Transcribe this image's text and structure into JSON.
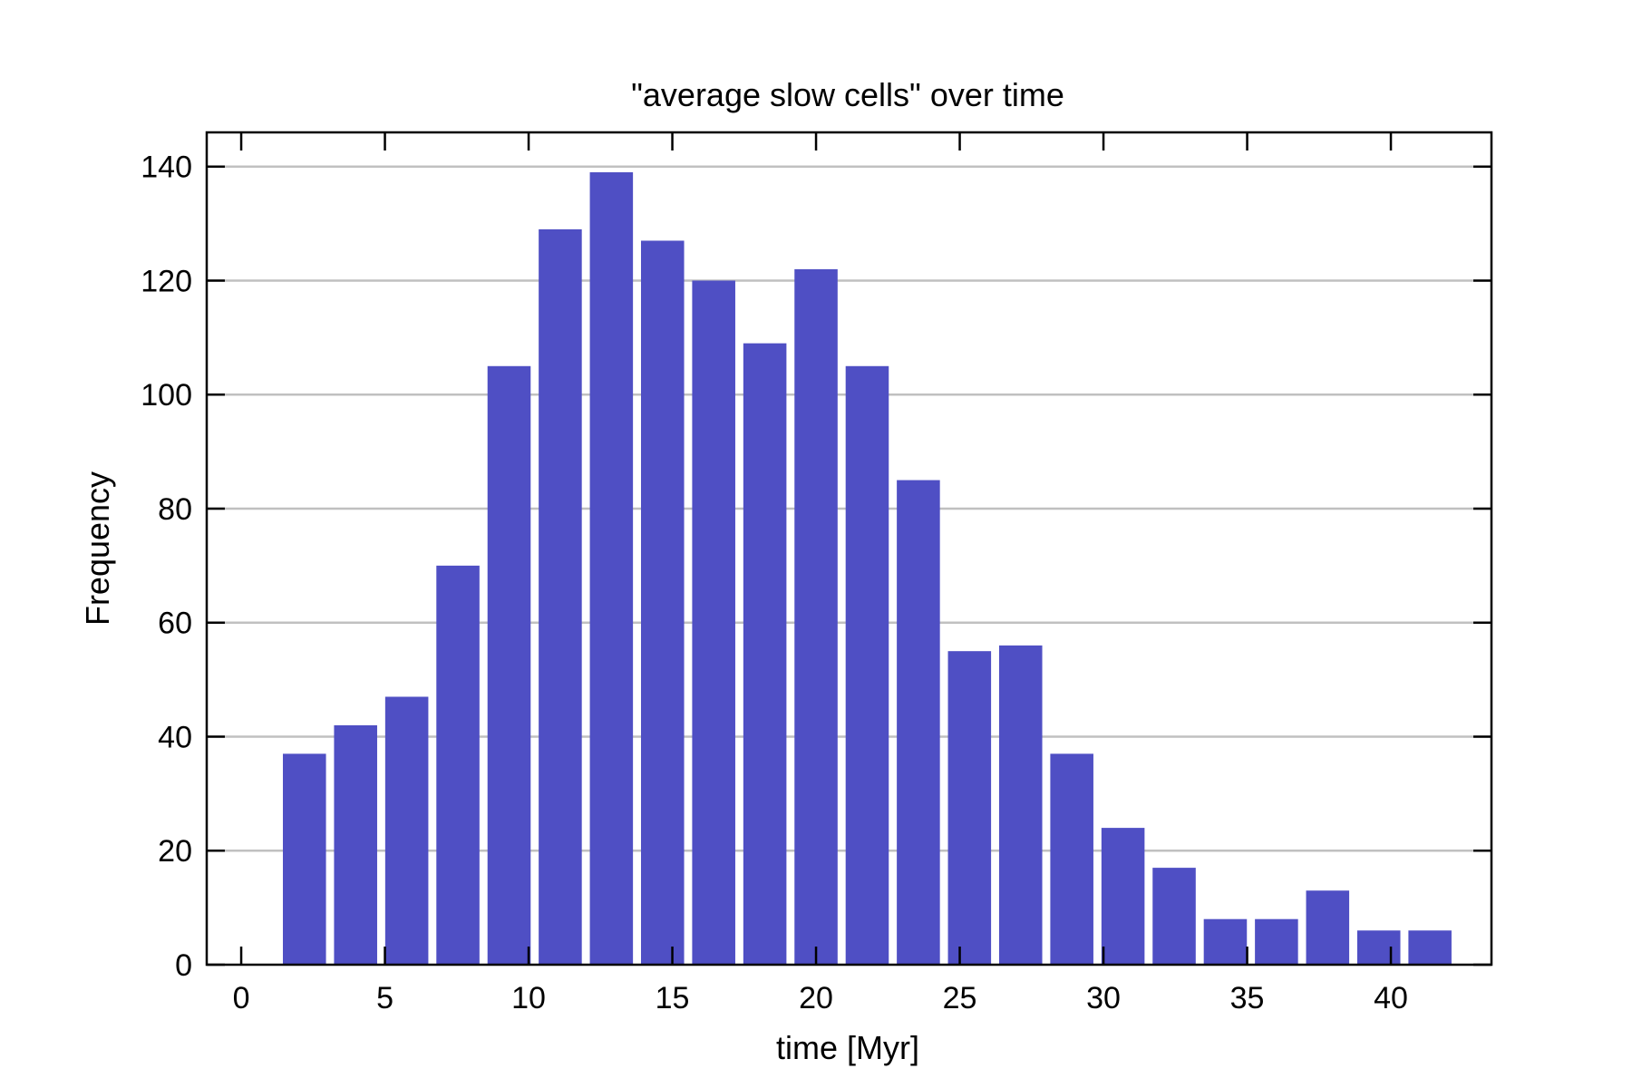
{
  "chart_data": {
    "type": "bar",
    "title": "\"average slow cells\" over time",
    "xlabel": "time [Myr]",
    "ylabel": "Frequency",
    "xlim": [
      -1.2,
      43.5
    ],
    "ylim": [
      0,
      146
    ],
    "xticks": [
      0,
      5,
      10,
      15,
      20,
      25,
      30,
      35,
      40
    ],
    "yticks": [
      0,
      20,
      40,
      60,
      80,
      100,
      120,
      140
    ],
    "grid": "horizontal",
    "bar_color": "#4f4fc4",
    "bin_width": 1.78,
    "bar_width": 1.5,
    "x": [
      2.2,
      3.98,
      5.76,
      7.54,
      9.32,
      11.1,
      12.88,
      14.66,
      16.44,
      18.22,
      20.0,
      21.78,
      23.56,
      25.34,
      27.12,
      28.9,
      30.68,
      32.46,
      34.24,
      36.02,
      37.8,
      39.58,
      41.36
    ],
    "values": [
      37,
      42,
      47,
      70,
      105,
      129,
      139,
      127,
      120,
      109,
      122,
      105,
      85,
      55,
      56,
      37,
      24,
      17,
      8,
      8,
      13,
      6,
      6
    ]
  }
}
